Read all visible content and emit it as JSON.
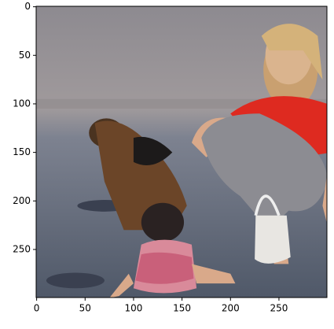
{
  "image": {
    "xlim": [
      -0.5,
      299.5
    ],
    "ylim": [
      299.5,
      -0.5
    ],
    "xticks": [
      0,
      50,
      100,
      150,
      200,
      250
    ],
    "yticks": [
      0,
      50,
      100,
      150,
      200,
      250
    ]
  }
}
